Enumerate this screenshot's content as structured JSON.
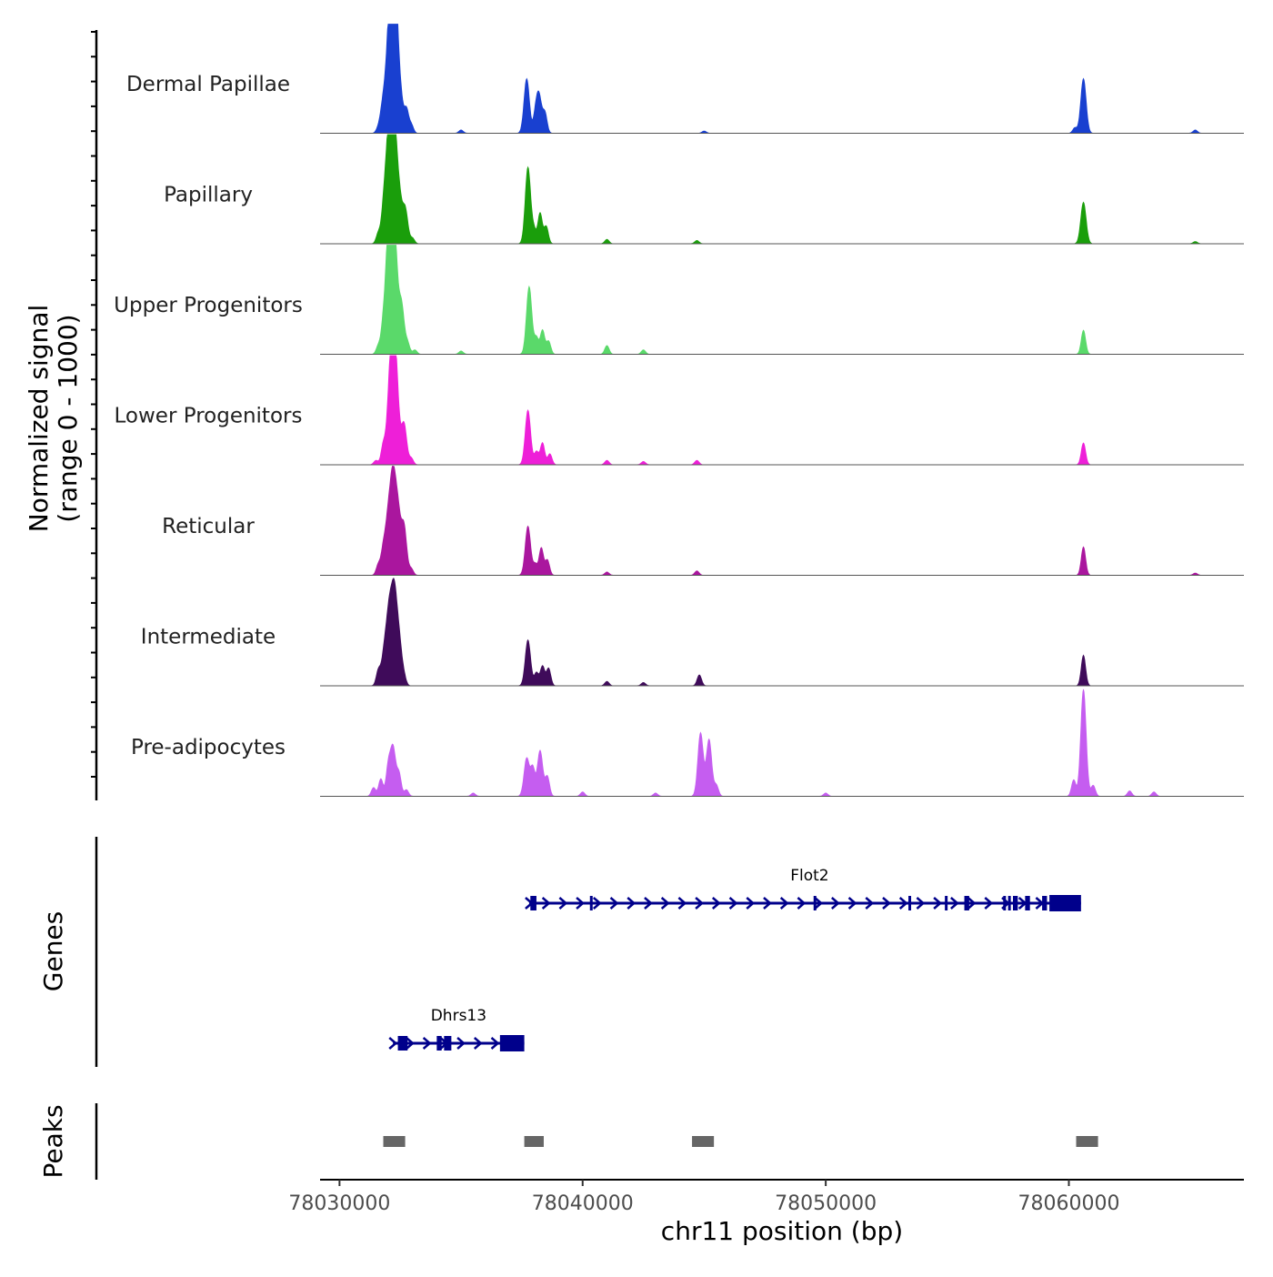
{
  "chart_data": {
    "type": "area",
    "subtype": "genome coverage tracks",
    "title": "",
    "ylabel_line1": "Normalized signal",
    "ylabel_line2": "(range 0 - 1000)",
    "xlabel": "chr11 position (bp)",
    "xlim": [
      78029200,
      78067200
    ],
    "x_ticks": [
      78030000,
      78040000,
      78050000,
      78060000
    ],
    "x_tick_labels": [
      "78030000",
      "78040000",
      "78050000",
      "78060000"
    ],
    "ylim": [
      0,
      1000
    ],
    "series": [
      {
        "name": "Dermal Papillae",
        "color": "#1940d0",
        "peaks": [
          [
            78031600,
            0.05
          ],
          [
            78031750,
            0.15
          ],
          [
            78031900,
            0.33
          ],
          [
            78032050,
            0.55
          ],
          [
            78032150,
            0.75
          ],
          [
            78032250,
            0.9
          ],
          [
            78032380,
            0.55
          ],
          [
            78032550,
            0.2
          ],
          [
            78032750,
            0.22
          ],
          [
            78032950,
            0.08
          ],
          [
            78037700,
            0.5
          ],
          [
            78038050,
            0.12
          ],
          [
            78038200,
            0.35
          ],
          [
            78038450,
            0.18
          ],
          [
            78060600,
            0.5
          ],
          [
            78060250,
            0.05
          ],
          [
            78035000,
            0.03
          ],
          [
            78045000,
            0.02
          ],
          [
            78065200,
            0.03
          ]
        ]
      },
      {
        "name": "Papillary",
        "color": "#1a9e0b",
        "peaks": [
          [
            78031600,
            0.1
          ],
          [
            78031800,
            0.22
          ],
          [
            78031950,
            0.55
          ],
          [
            78032100,
            0.85
          ],
          [
            78032250,
            0.9
          ],
          [
            78032450,
            0.42
          ],
          [
            78032700,
            0.32
          ],
          [
            78033000,
            0.05
          ],
          [
            78037750,
            0.7
          ],
          [
            78038000,
            0.12
          ],
          [
            78038250,
            0.28
          ],
          [
            78038500,
            0.16
          ],
          [
            78041000,
            0.04
          ],
          [
            78044700,
            0.03
          ],
          [
            78060600,
            0.38
          ],
          [
            78065200,
            0.02
          ]
        ]
      },
      {
        "name": "Upper Progenitors",
        "color": "#5ad96a",
        "peaks": [
          [
            78031600,
            0.08
          ],
          [
            78031800,
            0.25
          ],
          [
            78032000,
            0.9
          ],
          [
            78032150,
            0.97
          ],
          [
            78032300,
            0.72
          ],
          [
            78032550,
            0.45
          ],
          [
            78032800,
            0.1
          ],
          [
            78033100,
            0.04
          ],
          [
            78037800,
            0.62
          ],
          [
            78038100,
            0.15
          ],
          [
            78038350,
            0.22
          ],
          [
            78038600,
            0.12
          ],
          [
            78041000,
            0.08
          ],
          [
            78042500,
            0.04
          ],
          [
            78060600,
            0.22
          ],
          [
            78035000,
            0.03
          ]
        ]
      },
      {
        "name": "Lower Progenitors",
        "color": "#ee1fd8",
        "peaks": [
          [
            78031500,
            0.04
          ],
          [
            78031800,
            0.18
          ],
          [
            78032050,
            0.55
          ],
          [
            78032200,
            0.88
          ],
          [
            78032350,
            0.6
          ],
          [
            78032650,
            0.38
          ],
          [
            78032950,
            0.06
          ],
          [
            78037750,
            0.5
          ],
          [
            78038100,
            0.12
          ],
          [
            78038350,
            0.2
          ],
          [
            78038650,
            0.1
          ],
          [
            78041000,
            0.04
          ],
          [
            78042500,
            0.03
          ],
          [
            78044700,
            0.04
          ],
          [
            78060600,
            0.2
          ]
        ]
      },
      {
        "name": "Reticular",
        "color": "#aa169e",
        "peaks": [
          [
            78031600,
            0.1
          ],
          [
            78031800,
            0.22
          ],
          [
            78032000,
            0.5
          ],
          [
            78032200,
            0.82
          ],
          [
            78032400,
            0.55
          ],
          [
            78032650,
            0.45
          ],
          [
            78032950,
            0.06
          ],
          [
            78037750,
            0.45
          ],
          [
            78038050,
            0.1
          ],
          [
            78038300,
            0.25
          ],
          [
            78038550,
            0.14
          ],
          [
            78041000,
            0.03
          ],
          [
            78044700,
            0.04
          ],
          [
            78060600,
            0.26
          ],
          [
            78065200,
            0.02
          ]
        ]
      },
      {
        "name": "Intermediate",
        "color": "#3f0b5a",
        "peaks": [
          [
            78031600,
            0.14
          ],
          [
            78031850,
            0.32
          ],
          [
            78032050,
            0.62
          ],
          [
            78032250,
            0.78
          ],
          [
            78032450,
            0.4
          ],
          [
            78032650,
            0.08
          ],
          [
            78037750,
            0.42
          ],
          [
            78038100,
            0.12
          ],
          [
            78038350,
            0.18
          ],
          [
            78038600,
            0.16
          ],
          [
            78041000,
            0.04
          ],
          [
            78042500,
            0.03
          ],
          [
            78044800,
            0.1
          ],
          [
            78060600,
            0.28
          ]
        ]
      },
      {
        "name": "Pre-adipocytes",
        "color": "#c55df0",
        "peaks": [
          [
            78031400,
            0.08
          ],
          [
            78031700,
            0.16
          ],
          [
            78032000,
            0.25
          ],
          [
            78032200,
            0.45
          ],
          [
            78032450,
            0.2
          ],
          [
            78032750,
            0.06
          ],
          [
            78037700,
            0.35
          ],
          [
            78037950,
            0.25
          ],
          [
            78038250,
            0.42
          ],
          [
            78038550,
            0.18
          ],
          [
            78040000,
            0.04
          ],
          [
            78044850,
            0.58
          ],
          [
            78045200,
            0.52
          ],
          [
            78045500,
            0.1
          ],
          [
            78060200,
            0.15
          ],
          [
            78060600,
            0.98
          ],
          [
            78061000,
            0.1
          ],
          [
            78062500,
            0.05
          ],
          [
            78063500,
            0.04
          ],
          [
            78035500,
            0.03
          ],
          [
            78043000,
            0.03
          ],
          [
            78050000,
            0.03
          ]
        ]
      }
    ],
    "genes_label": "Genes",
    "genes": [
      {
        "name": "Flot2",
        "strand": "+",
        "start": 78037800,
        "end": 78060500,
        "exons": [
          [
            78037850,
            78038100
          ],
          [
            78040300,
            78040350
          ],
          [
            78049500,
            78049600
          ],
          [
            78053400,
            78053500
          ],
          [
            78054900,
            78055000
          ],
          [
            78055700,
            78055900
          ],
          [
            78057300,
            78057400
          ],
          [
            78057500,
            78057600
          ],
          [
            78057700,
            78057900
          ],
          [
            78058200,
            78058400
          ],
          [
            78058900,
            78059100
          ],
          [
            78059200,
            78060500
          ]
        ]
      },
      {
        "name": "Dhrs13",
        "strand": "+",
        "start": 78032200,
        "end": 78037600,
        "exons": [
          [
            78032400,
            78032800
          ],
          [
            78034000,
            78034200
          ],
          [
            78034300,
            78034600
          ],
          [
            78036600,
            78037600
          ]
        ]
      }
    ],
    "peaks_label": "Peaks",
    "peak_regions": [
      [
        78031800,
        78032700
      ],
      [
        78037600,
        78038400
      ],
      [
        78044500,
        78045400
      ],
      [
        78060300,
        78061200
      ]
    ]
  }
}
